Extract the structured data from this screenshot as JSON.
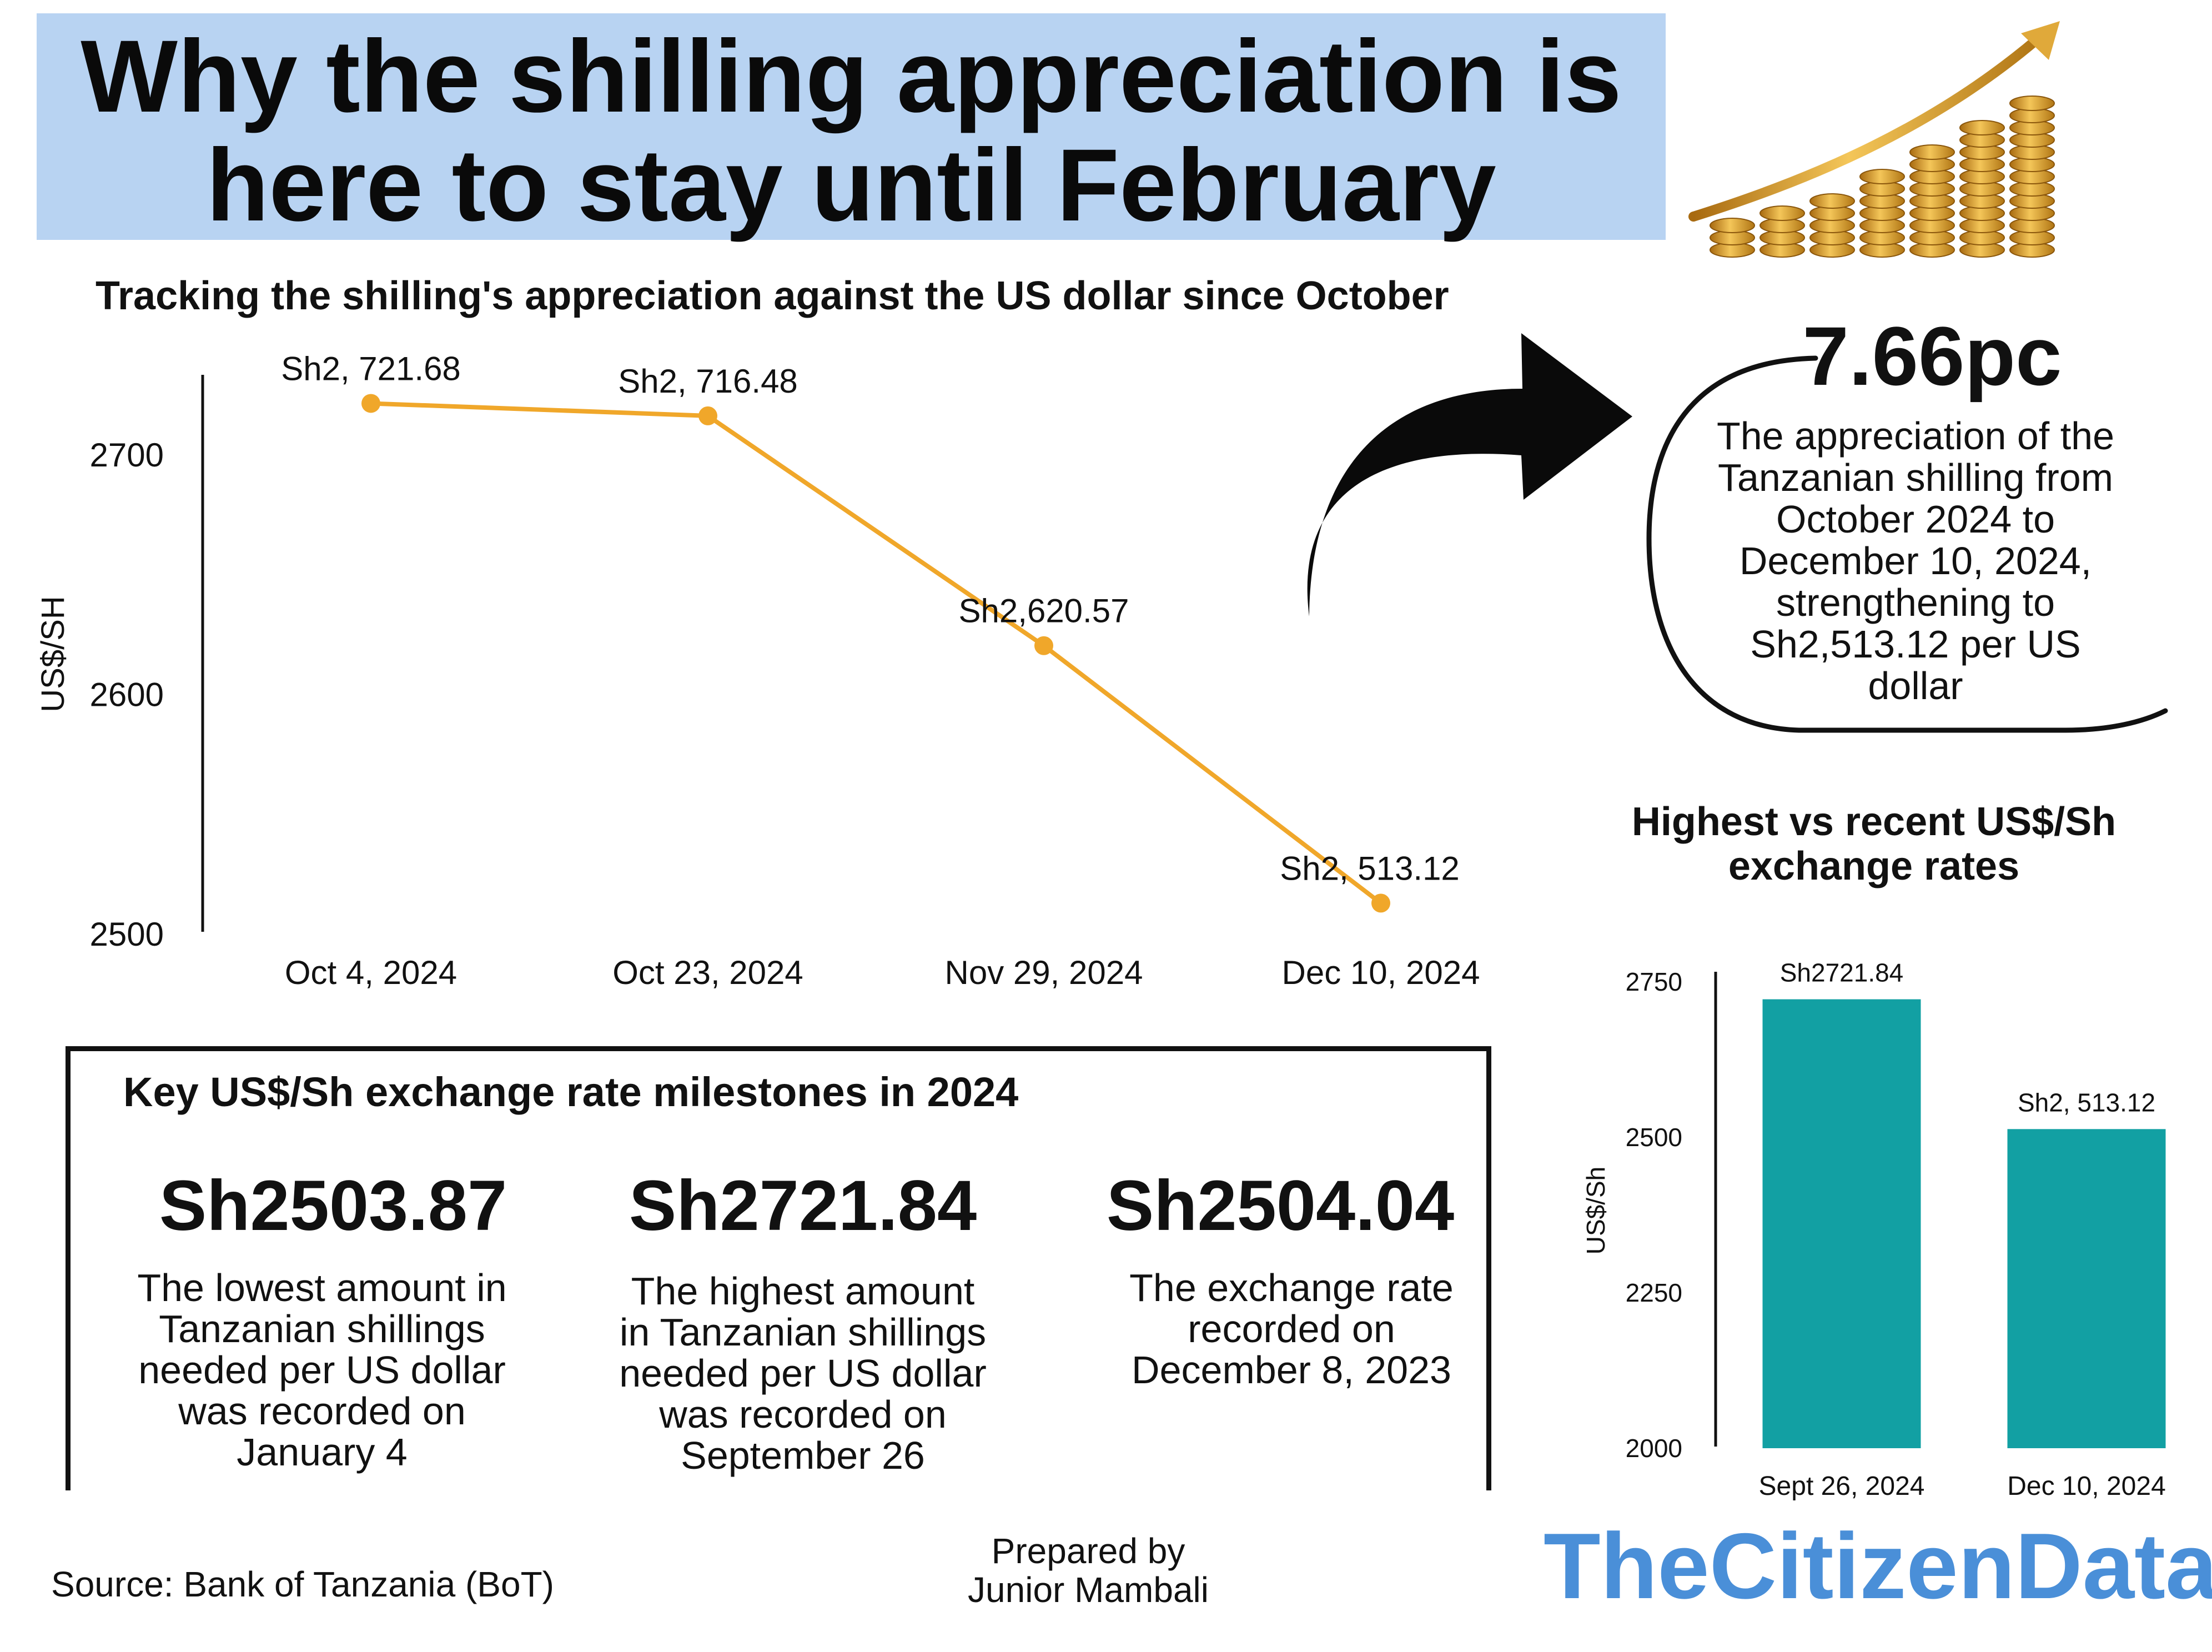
{
  "header": {
    "title_line1": "Why the shilling appreciation is",
    "title_line2": "here to stay until February"
  },
  "line_chart": {
    "title": "Tracking the shilling's appreciation against the US dollar since October"
  },
  "callout": {
    "percent": "7.66pc",
    "lines": [
      "The appreciation of the",
      "Tanzanian shilling from",
      "October 2024 to",
      "December 10, 2024,",
      "strengthening to",
      "Sh2,513.12 per US",
      "dollar"
    ]
  },
  "bar_chart": {
    "title_line1": "Highest vs recent US$/Sh",
    "title_line2": "exchange rates"
  },
  "milestones": {
    "title": "Key US$/Sh exchange rate milestones in 2024",
    "items": [
      {
        "value": "Sh2503.87",
        "lines": [
          "The lowest amount in",
          "Tanzanian shillings",
          "needed per US dollar",
          "was recorded on",
          "January 4"
        ]
      },
      {
        "value": "Sh2721.84",
        "lines": [
          "The highest amount",
          "in Tanzanian shillings",
          "needed per US dollar",
          "was recorded on",
          "September 26"
        ]
      },
      {
        "value": "Sh2504.04",
        "lines": [
          "The exchange rate",
          "recorded on",
          "December 8, 2023"
        ]
      }
    ]
  },
  "footer": {
    "source": "Source: Bank of Tanzania (BoT)",
    "prepared_line1": "Prepared by",
    "prepared_line2": "Junior Mambali",
    "brand": "TheCitizenData"
  },
  "colors": {
    "title_bg": "#b8d3f2",
    "line": "#f0a72a",
    "bar": "#12a0a3",
    "brand": "#4a8fd8"
  },
  "icons": [
    "gold-coins-rising-arrow-icon",
    "curved-arrow-icon"
  ],
  "chart_data": [
    {
      "type": "line",
      "title": "Tracking the shilling's appreciation against the US dollar since October",
      "categories": [
        "Oct 4, 2024",
        "Oct 23, 2024",
        "Nov 29, 2024",
        "Dec 10, 2024"
      ],
      "values": [
        2721.68,
        2716.48,
        2620.57,
        2513.12
      ],
      "data_labels": [
        "Sh2, 721.68",
        "Sh2, 716.48",
        "Sh2,620.57",
        "Sh2, 513.12"
      ],
      "ylabel": "US$/SH",
      "ylim": [
        2500,
        2735
      ],
      "yticks": [
        2500,
        2600,
        2700
      ],
      "grid": false
    },
    {
      "type": "bar",
      "title": "Highest vs recent US$/Sh exchange rates",
      "categories": [
        "Sept 26, 2024",
        "Dec 10, 2024"
      ],
      "values": [
        2721.84,
        2513.12
      ],
      "data_labels": [
        "Sh2721.84",
        "Sh2, 513.12"
      ],
      "ylabel": "US$/Sh",
      "ylim": [
        2000,
        2780
      ],
      "yticks": [
        2000,
        2250,
        2500,
        2750
      ],
      "grid": false
    }
  ]
}
